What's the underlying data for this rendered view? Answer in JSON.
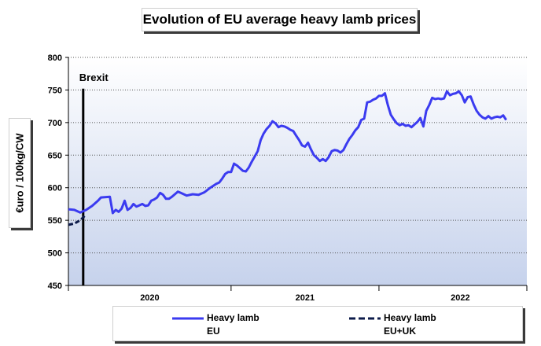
{
  "chart_data": {
    "type": "line",
    "title": "Evolution of EU average heavy lamb prices",
    "ylabel": "€uro / 100kg/CW",
    "xlabel": "",
    "ylim": [
      450,
      800
    ],
    "yticks": [
      450,
      500,
      550,
      600,
      650,
      700,
      750,
      800
    ],
    "xlim": [
      0,
      155
    ],
    "x_unit": "weeks",
    "year_labels": [
      {
        "label": "2020",
        "x": 27.5
      },
      {
        "label": "2021",
        "x": 80
      },
      {
        "label": "2022",
        "x": 132.5
      }
    ],
    "year_ticks": [
      0,
      55,
      105,
      155
    ],
    "grid": "horizontal dotted",
    "annotation": {
      "label": "Brexit",
      "x": 5
    },
    "legend_position": "bottom",
    "series": [
      {
        "name": "Heavy lamb\nEU",
        "color": "#3b3bf0",
        "style": "solid",
        "points": [
          [
            0,
            567
          ],
          [
            2,
            566
          ],
          [
            4,
            562
          ],
          [
            6,
            566
          ],
          [
            8,
            572
          ],
          [
            10,
            580
          ],
          [
            11,
            585
          ],
          [
            14,
            586
          ],
          [
            15,
            561
          ],
          [
            16,
            566
          ],
          [
            17,
            563
          ],
          [
            18,
            568
          ],
          [
            19,
            580
          ],
          [
            20,
            566
          ],
          [
            21,
            569
          ],
          [
            22,
            575
          ],
          [
            23,
            571
          ],
          [
            24,
            573
          ],
          [
            25,
            575
          ],
          [
            26,
            572
          ],
          [
            27,
            573
          ],
          [
            28,
            580
          ],
          [
            29,
            582
          ],
          [
            30,
            585
          ],
          [
            31,
            592
          ],
          [
            32,
            589
          ],
          [
            33,
            583
          ],
          [
            34,
            583
          ],
          [
            35,
            586
          ],
          [
            37,
            594
          ],
          [
            38,
            592
          ],
          [
            39,
            590
          ],
          [
            40,
            588
          ],
          [
            42,
            590
          ],
          [
            44,
            589
          ],
          [
            46,
            593
          ],
          [
            48,
            600
          ],
          [
            50,
            606
          ],
          [
            51,
            608
          ],
          [
            52,
            614
          ],
          [
            53,
            621
          ],
          [
            54,
            624
          ],
          [
            55,
            624
          ],
          [
            56,
            637
          ],
          [
            57,
            634
          ],
          [
            58,
            630
          ],
          [
            59,
            626
          ],
          [
            60,
            625
          ],
          [
            61,
            631
          ],
          [
            62,
            640
          ],
          [
            63,
            648
          ],
          [
            64,
            656
          ],
          [
            65,
            673
          ],
          [
            66,
            683
          ],
          [
            67,
            690
          ],
          [
            68,
            695
          ],
          [
            69,
            702
          ],
          [
            70,
            699
          ],
          [
            71,
            693
          ],
          [
            72,
            695
          ],
          [
            73,
            694
          ],
          [
            74,
            692
          ],
          [
            75,
            689
          ],
          [
            76,
            687
          ],
          [
            77,
            680
          ],
          [
            78,
            673
          ],
          [
            79,
            665
          ],
          [
            80,
            663
          ],
          [
            81,
            669
          ],
          [
            82,
            659
          ],
          [
            83,
            650
          ],
          [
            84,
            646
          ],
          [
            85,
            641
          ],
          [
            86,
            644
          ],
          [
            87,
            641
          ],
          [
            88,
            647
          ],
          [
            89,
            656
          ],
          [
            90,
            658
          ],
          [
            91,
            657
          ],
          [
            92,
            654
          ],
          [
            93,
            658
          ],
          [
            94,
            667
          ],
          [
            95,
            675
          ],
          [
            96,
            681
          ],
          [
            97,
            688
          ],
          [
            98,
            693
          ],
          [
            99,
            704
          ],
          [
            100,
            706
          ],
          [
            101,
            731
          ],
          [
            102,
            732
          ],
          [
            103,
            735
          ],
          [
            104,
            737
          ],
          [
            105,
            741
          ],
          [
            106,
            741
          ],
          [
            107,
            745
          ],
          [
            108,
            727
          ],
          [
            109,
            712
          ],
          [
            110,
            705
          ],
          [
            111,
            699
          ],
          [
            112,
            696
          ],
          [
            113,
            698
          ],
          [
            114,
            695
          ],
          [
            115,
            696
          ],
          [
            116,
            693
          ],
          [
            117,
            697
          ],
          [
            118,
            701
          ],
          [
            119,
            707
          ],
          [
            120,
            694
          ],
          [
            121,
            718
          ],
          [
            122,
            727
          ],
          [
            123,
            738
          ],
          [
            124,
            736
          ],
          [
            125,
            737
          ],
          [
            126,
            736
          ],
          [
            127,
            737
          ],
          [
            128,
            748
          ],
          [
            129,
            742
          ],
          [
            130,
            744
          ],
          [
            131,
            745
          ],
          [
            132,
            748
          ],
          [
            133,
            742
          ],
          [
            134,
            731
          ],
          [
            135,
            739
          ],
          [
            136,
            740
          ],
          [
            137,
            728
          ],
          [
            138,
            718
          ],
          [
            139,
            712
          ],
          [
            140,
            708
          ],
          [
            141,
            706
          ],
          [
            142,
            710
          ],
          [
            143,
            706
          ],
          [
            144,
            708
          ],
          [
            145,
            709
          ],
          [
            146,
            708
          ],
          [
            147,
            711
          ],
          [
            148,
            704
          ]
        ]
      },
      {
        "name": "Heavy lamb\nEU+UK",
        "color": "#0d1b4a",
        "style": "dashed",
        "points": [
          [
            0,
            543
          ],
          [
            2,
            545
          ],
          [
            4,
            550
          ],
          [
            6,
            559
          ]
        ]
      }
    ]
  }
}
